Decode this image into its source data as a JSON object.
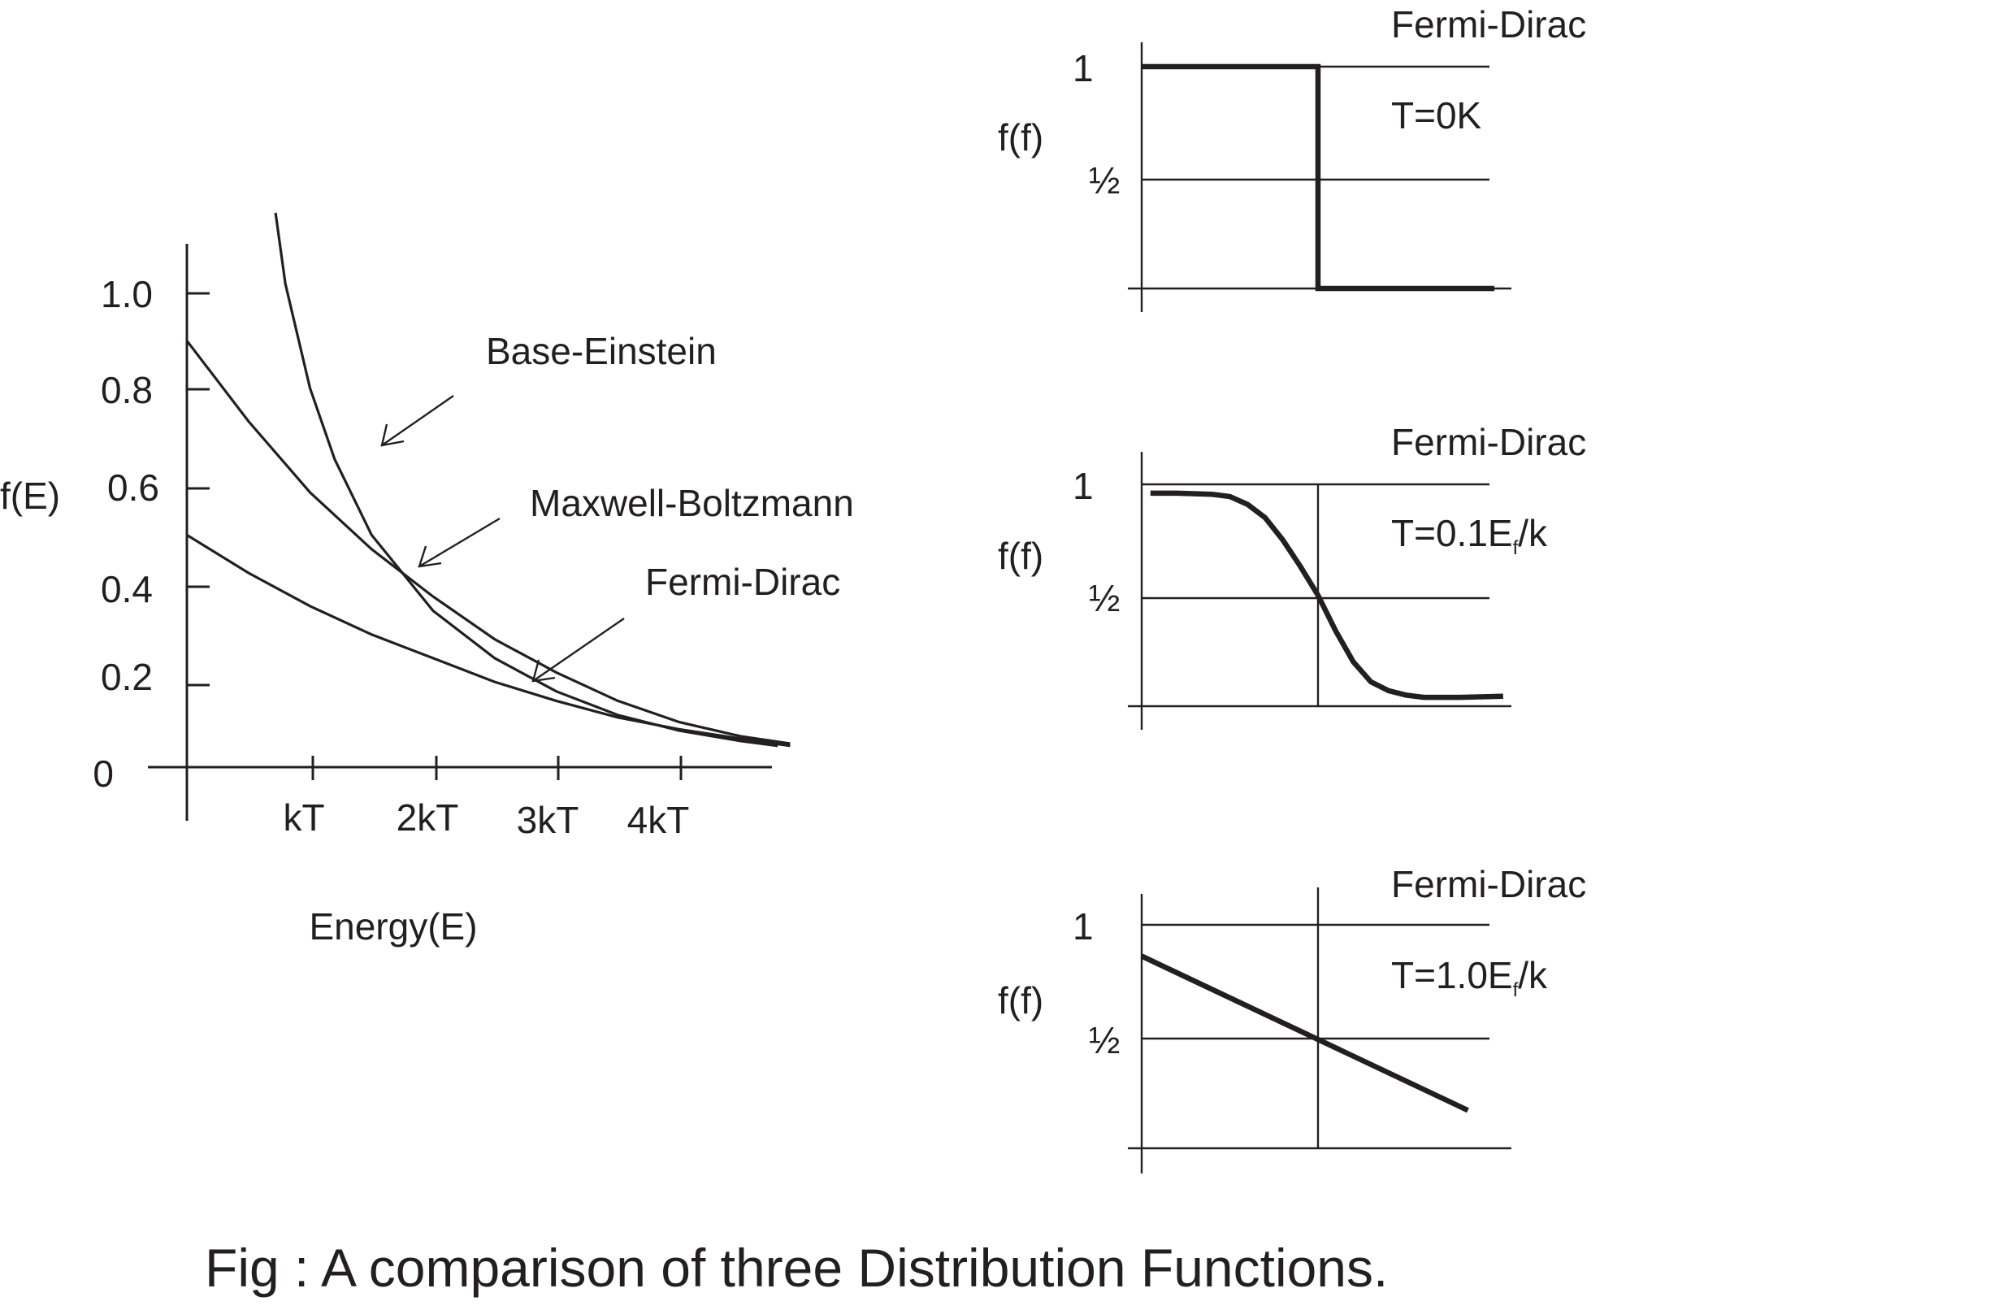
{
  "caption": "Fig : A comparison of three Distribution Functions.",
  "chart_data": [
    {
      "type": "line",
      "title": "",
      "xlabel": "Energy(E)",
      "ylabel": "f(E)",
      "x_tick_labels": [
        "kT",
        "2kT",
        "3kT",
        "4kT"
      ],
      "y_tick_labels": [
        "0",
        "0.2",
        "0.4",
        "0.6",
        "0.8",
        "1.0"
      ],
      "xlim": [
        0,
        4.8
      ],
      "ylim": [
        0,
        1.0
      ],
      "grid": false,
      "legend": "none",
      "series": [
        {
          "name": "Base-Einstein",
          "x": [
            0.72,
            0.8,
            1.0,
            1.2,
            1.5,
            2.0,
            2.5,
            3.0,
            3.5,
            4.0,
            4.5,
            4.8
          ],
          "y": [
            1.17,
            1.02,
            0.8,
            0.65,
            0.49,
            0.33,
            0.23,
            0.16,
            0.11,
            0.077,
            0.055,
            0.045
          ]
        },
        {
          "name": "Maxwell-Boltzmann",
          "x": [
            0,
            0.5,
            1.0,
            1.5,
            2.0,
            2.5,
            3.0,
            3.5,
            4.0,
            4.5,
            4.9
          ],
          "y": [
            0.9,
            0.73,
            0.58,
            0.46,
            0.36,
            0.27,
            0.2,
            0.14,
            0.095,
            0.065,
            0.05
          ]
        },
        {
          "name": "Fermi-Dirac",
          "x": [
            0,
            0.5,
            1.0,
            1.5,
            2.0,
            2.5,
            3.0,
            3.5,
            4.0,
            4.5,
            4.9
          ],
          "y": [
            0.49,
            0.41,
            0.34,
            0.28,
            0.23,
            0.18,
            0.14,
            0.105,
            0.08,
            0.06,
            0.045
          ]
        }
      ],
      "annotations": [
        {
          "text": "Base-Einstein",
          "series": "Base-Einstein",
          "x": 1.6,
          "y": 0.67
        },
        {
          "text": "Maxwell-Boltzmann",
          "series": "Maxwell-Boltzmann",
          "x": 1.9,
          "y": 0.41
        },
        {
          "text": "Fermi-Dirac",
          "series": "Fermi-Dirac",
          "x": 2.8,
          "y": 0.18
        }
      ]
    },
    {
      "type": "line",
      "title": "Fermi-Dirac",
      "annotation": "T=0K",
      "ylabel": "f(f)",
      "y_tick_labels": [
        "1",
        "½"
      ],
      "ylim": [
        0,
        1
      ],
      "reference_lines_y": [
        1,
        0.5
      ],
      "reference_line_x": 1,
      "series": [
        {
          "x": [
            0,
            1,
            1,
            2
          ],
          "y": [
            1,
            1,
            0,
            0
          ]
        }
      ]
    },
    {
      "type": "line",
      "title": "Fermi-Dirac",
      "annotation_main": "T=0.1E",
      "annotation_sub": "f",
      "annotation_tail": "/k",
      "ylabel": "f(f)",
      "y_tick_labels": [
        "1",
        "½"
      ],
      "ylim": [
        0,
        1
      ],
      "reference_lines_y": [
        1,
        0.5
      ],
      "reference_line_x": 1,
      "series": [
        {
          "x": [
            0.05,
            0.2,
            0.4,
            0.5,
            0.6,
            0.7,
            0.8,
            0.9,
            1.0,
            1.1,
            1.2,
            1.3,
            1.4,
            1.5,
            1.6,
            1.8,
            2.05
          ],
          "y": [
            0.96,
            0.96,
            0.955,
            0.945,
            0.91,
            0.85,
            0.75,
            0.63,
            0.5,
            0.34,
            0.2,
            0.11,
            0.07,
            0.05,
            0.04,
            0.04,
            0.045
          ]
        }
      ]
    },
    {
      "type": "line",
      "title": "Fermi-Dirac",
      "annotation_main": "T=1.0E",
      "annotation_sub": "f",
      "annotation_tail": "/k",
      "ylabel": "f(f)",
      "y_tick_labels": [
        "1",
        "½"
      ],
      "ylim": [
        0,
        1
      ],
      "reference_lines_y": [
        1,
        0.5
      ],
      "reference_line_x": 1,
      "series": [
        {
          "x": [
            0,
            1.85
          ],
          "y": [
            0.86,
            0.17
          ]
        }
      ]
    }
  ]
}
